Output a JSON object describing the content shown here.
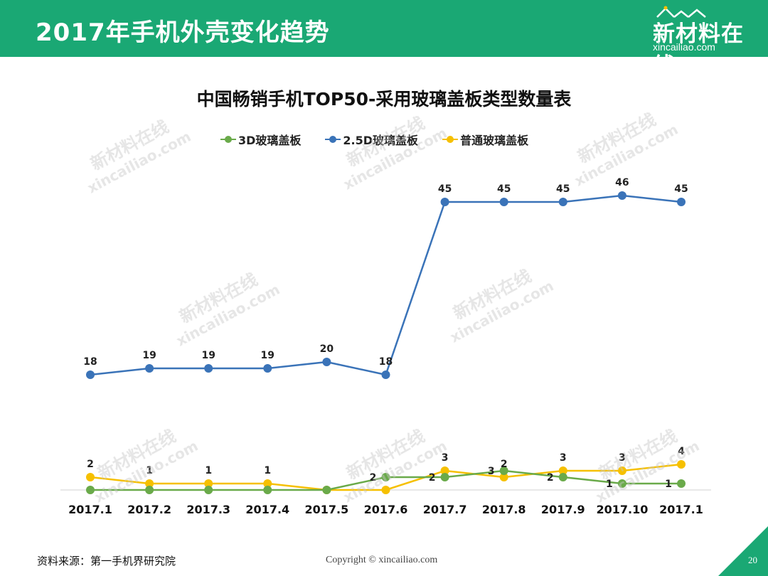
{
  "header": {
    "title": "2017年手机外壳变化趋势",
    "logo_cn": "新材料在线",
    "logo_en": "xincailiao.com",
    "bar_color": "#1aa874"
  },
  "watermark": {
    "cn": "新材料在线",
    "en": "xincailiao.com"
  },
  "chart_data": {
    "type": "line",
    "title": "中国畅销手机TOP50-采用玻璃盖板类型数量表",
    "categories": [
      "2017.1",
      "2017.2",
      "2017.3",
      "2017.4",
      "2017.5",
      "2017.6",
      "2017.7",
      "2017.8",
      "2017.9",
      "2017.10",
      "2017.1"
    ],
    "series": [
      {
        "name": "3D玻璃盖板",
        "color": "#6aaa4a",
        "values": [
          0,
          0,
          0,
          0,
          0,
          2,
          2,
          3,
          2,
          1,
          1
        ]
      },
      {
        "name": "2.5D玻璃盖板",
        "color": "#3a73b8",
        "values": [
          18,
          19,
          19,
          19,
          20,
          18,
          45,
          45,
          45,
          46,
          45
        ]
      },
      {
        "name": "普通玻璃盖板",
        "color": "#f6c000",
        "values": [
          2,
          1,
          1,
          1,
          0,
          0,
          3,
          2,
          3,
          3,
          4
        ]
      }
    ],
    "data_labels": {
      "3D玻璃盖板": [
        "",
        "",
        "",
        "",
        "",
        "2",
        "2",
        "3",
        "2",
        "1",
        "1"
      ],
      "2.5D玻璃盖板": [
        "18",
        "19",
        "19",
        "19",
        "20",
        "18",
        "45",
        "45",
        "45",
        "46",
        "45"
      ],
      "普通玻璃盖板": [
        "2",
        "1",
        "1",
        "1",
        "",
        "",
        "3",
        "2",
        "3",
        "3",
        "4"
      ]
    },
    "ylim": [
      0,
      46
    ],
    "xlabel": "",
    "ylabel": "",
    "grid": false,
    "legend_position": "top"
  },
  "footer": {
    "source": "资料来源：第一手机界研究院",
    "copyright": "Copyright © xincailiao.com",
    "page": "20",
    "corner_color": "#1aa874"
  }
}
